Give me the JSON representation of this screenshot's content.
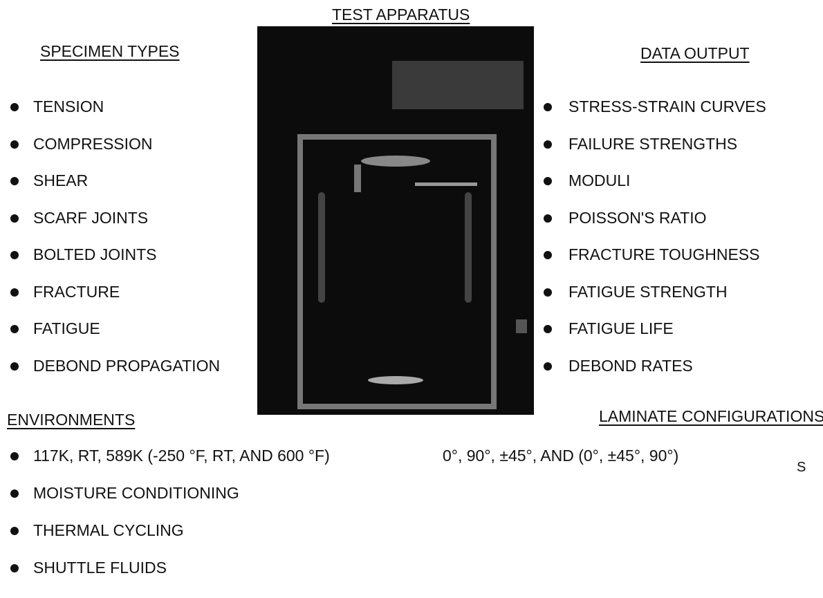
{
  "title": "TEST APPARATUS",
  "specimen_types": {
    "heading": "SPECIMEN TYPES",
    "items": [
      "TENSION",
      "COMPRESSION",
      "SHEAR",
      "SCARF JOINTS",
      "BOLTED JOINTS",
      "FRACTURE",
      "FATIGUE",
      "DEBOND PROPAGATION"
    ]
  },
  "data_output": {
    "heading": "DATA OUTPUT",
    "items": [
      "STRESS-STRAIN CURVES",
      "FAILURE STRENGTHS",
      "MODULI",
      "POISSON'S RATIO",
      "FRACTURE TOUGHNESS",
      "FATIGUE STRENGTH",
      "FATIGUE LIFE",
      "DEBOND RATES"
    ]
  },
  "environments": {
    "heading": "ENVIRONMENTS",
    "items": [
      "117K, RT, 589K (-250 °F, RT, AND 600 °F)",
      "MOISTURE CONDITIONING",
      "THERMAL CYCLING",
      "SHUTTLE FLUIDS"
    ]
  },
  "laminate_configurations": {
    "heading": "LAMINATE CONFIGURATIONS",
    "text": "0°, 90°, ±45°, AND (0°, ±45°, 90°)",
    "subscript": "S"
  }
}
